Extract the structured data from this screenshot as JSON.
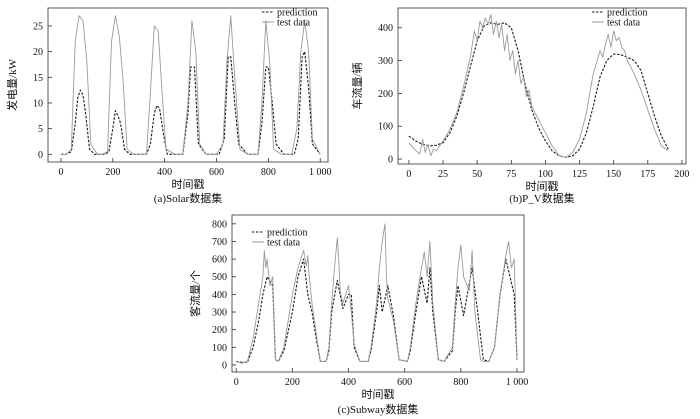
{
  "chart_data": [
    {
      "type": "line",
      "caption": "(a)Solar数据集",
      "xlabel": "时间戳",
      "ylabel": "发电量/kW",
      "xlim": [
        -50,
        1030
      ],
      "ylim": [
        -1.5,
        28.5
      ],
      "xticks": [
        0,
        200,
        400,
        600,
        800,
        1000
      ],
      "xticklabels": [
        "0",
        "200",
        "400",
        "600",
        "800",
        "1 000"
      ],
      "yticks": [
        0,
        5,
        10,
        15,
        20,
        25
      ],
      "yticklabels": [
        "0",
        "5",
        "10",
        "15",
        "20",
        "25"
      ],
      "legend": {
        "position": "top-right",
        "entries": [
          "prediction",
          "test data"
        ]
      },
      "series": [
        {
          "name": "prediction",
          "style": "dashed",
          "color": "#1a1a1a",
          "x": [
            0,
            20,
            40,
            55,
            65,
            75,
            85,
            95,
            110,
            130,
            150,
            170,
            185,
            200,
            210,
            220,
            230,
            245,
            265,
            290,
            310,
            330,
            345,
            360,
            370,
            380,
            395,
            410,
            430,
            455,
            470,
            490,
            500,
            515,
            530,
            560,
            590,
            610,
            630,
            645,
            655,
            670,
            685,
            720,
            740,
            760,
            775,
            790,
            800,
            815,
            830,
            860,
            880,
            900,
            915,
            930,
            940,
            955,
            970,
            1000
          ],
          "y": [
            0,
            0,
            0.5,
            6,
            11,
            12.5,
            11.5,
            8,
            1,
            0,
            0,
            0,
            0.5,
            5,
            8.5,
            7.5,
            6,
            1,
            0,
            0,
            0,
            0,
            2,
            8,
            9.5,
            9,
            4,
            0,
            0,
            0,
            0,
            8,
            17,
            17,
            2,
            0,
            0,
            0,
            3,
            19,
            19,
            10,
            2,
            0,
            0,
            0,
            6,
            17,
            17,
            10,
            2,
            0,
            0,
            0,
            3,
            19,
            20,
            13,
            2,
            0
          ]
        },
        {
          "name": "test data",
          "style": "solid",
          "color": "#9a9a9a",
          "x": [
            0,
            20,
            40,
            55,
            70,
            85,
            100,
            115,
            140,
            160,
            180,
            195,
            210,
            225,
            240,
            255,
            280,
            300,
            330,
            345,
            360,
            375,
            390,
            405,
            440,
            470,
            490,
            505,
            520,
            535,
            560,
            600,
            625,
            640,
            655,
            670,
            690,
            720,
            760,
            775,
            790,
            805,
            820,
            850,
            890,
            910,
            925,
            940,
            955,
            970,
            1000
          ],
          "y": [
            0,
            0,
            1,
            22,
            27,
            26,
            18,
            2,
            0,
            0,
            0.5,
            22,
            27,
            23,
            14,
            1,
            0,
            0,
            0,
            12,
            25,
            24,
            12,
            1,
            0,
            0,
            10,
            26,
            20,
            2,
            0,
            0,
            2,
            18,
            27,
            15,
            1,
            0,
            0,
            10,
            26,
            18,
            1,
            0,
            0,
            5,
            20,
            26,
            20,
            3,
            0
          ]
        }
      ]
    },
    {
      "type": "line",
      "caption": "(b)P_V数据集",
      "xlabel": "时间戳",
      "ylabel": "车流量/辆",
      "xlim": [
        -8,
        203
      ],
      "ylim": [
        -15,
        460
      ],
      "xticks": [
        0,
        25,
        50,
        75,
        100,
        125,
        150,
        175,
        200
      ],
      "xticklabels": [
        "0",
        "25",
        "50",
        "75",
        "100",
        "125",
        "150",
        "175",
        "200"
      ],
      "yticks": [
        0,
        100,
        200,
        300,
        400
      ],
      "yticklabels": [
        "0",
        "100",
        "200",
        "300",
        "400"
      ],
      "legend": {
        "position": "top-right",
        "entries": [
          "prediction",
          "test data"
        ]
      },
      "series": [
        {
          "name": "prediction",
          "style": "dashed",
          "color": "#1a1a1a",
          "x": [
            0,
            5,
            10,
            15,
            20,
            25,
            30,
            35,
            40,
            45,
            50,
            55,
            60,
            65,
            70,
            75,
            80,
            85,
            90,
            95,
            100,
            105,
            110,
            115,
            120,
            125,
            130,
            135,
            140,
            145,
            150,
            155,
            160,
            165,
            170,
            175,
            180,
            185,
            190
          ],
          "y": [
            70,
            55,
            45,
            40,
            42,
            50,
            80,
            130,
            200,
            280,
            360,
            405,
            415,
            410,
            415,
            400,
            330,
            230,
            150,
            95,
            55,
            25,
            10,
            5,
            10,
            30,
            80,
            160,
            250,
            300,
            320,
            318,
            310,
            300,
            270,
            200,
            130,
            70,
            30
          ]
        },
        {
          "name": "test data",
          "style": "solid",
          "color": "#9a9a9a",
          "x": [
            0,
            4,
            8,
            10,
            12,
            14,
            16,
            18,
            20,
            25,
            30,
            35,
            40,
            45,
            48,
            50,
            52,
            54,
            56,
            58,
            60,
            62,
            64,
            66,
            68,
            70,
            72,
            74,
            76,
            78,
            80,
            82,
            84,
            86,
            88,
            90,
            95,
            100,
            105,
            110,
            115,
            120,
            125,
            130,
            135,
            140,
            142,
            144,
            146,
            148,
            150,
            152,
            154,
            156,
            158,
            160,
            165,
            170,
            175,
            180,
            185,
            190
          ],
          "y": [
            50,
            30,
            15,
            60,
            20,
            45,
            10,
            30,
            25,
            55,
            90,
            140,
            220,
            310,
            390,
            360,
            420,
            400,
            430,
            410,
            440,
            380,
            420,
            370,
            410,
            330,
            380,
            300,
            330,
            260,
            300,
            230,
            250,
            190,
            210,
            160,
            120,
            80,
            40,
            10,
            5,
            20,
            60,
            140,
            260,
            330,
            310,
            350,
            380,
            340,
            390,
            360,
            370,
            340,
            330,
            300,
            260,
            210,
            150,
            90,
            40,
            25
          ]
        }
      ]
    },
    {
      "type": "line",
      "caption": "(c)Subway数据集",
      "xlabel": "时间戳",
      "ylabel": "客流量/个",
      "xlim": [
        -15,
        1025
      ],
      "ylim": [
        -40,
        850
      ],
      "xticks": [
        0,
        200,
        400,
        600,
        800,
        1000
      ],
      "xticklabels": [
        "0",
        "200",
        "400",
        "600",
        "800",
        "1 000"
      ],
      "yticks": [
        0,
        100,
        200,
        300,
        400,
        500,
        600,
        700,
        800
      ],
      "yticklabels": [
        "0",
        "100",
        "200",
        "300",
        "400",
        "500",
        "600",
        "700",
        "800"
      ],
      "legend": {
        "position": "top-left",
        "entries": [
          "prediction",
          "test data"
        ]
      },
      "series": [
        {
          "name": "prediction",
          "style": "dashed",
          "color": "#1a1a1a",
          "x": [
            0,
            20,
            40,
            60,
            80,
            95,
            110,
            130,
            140,
            150,
            170,
            200,
            220,
            240,
            255,
            270,
            285,
            300,
            320,
            330,
            340,
            360,
            380,
            400,
            410,
            420,
            440,
            470,
            480,
            500,
            510,
            520,
            540,
            560,
            580,
            610,
            620,
            640,
            660,
            680,
            690,
            700,
            720,
            740,
            770,
            780,
            790,
            810,
            840,
            860,
            880,
            900,
            920,
            940,
            960,
            990,
            1000
          ],
          "y": [
            20,
            15,
            15,
            100,
            250,
            400,
            500,
            450,
            30,
            20,
            80,
            300,
            500,
            600,
            400,
            300,
            150,
            20,
            20,
            80,
            300,
            480,
            320,
            400,
            400,
            100,
            20,
            20,
            80,
            300,
            450,
            300,
            450,
            280,
            30,
            20,
            80,
            300,
            500,
            350,
            550,
            300,
            30,
            20,
            80,
            300,
            450,
            280,
            550,
            300,
            30,
            20,
            100,
            400,
            600,
            400,
            30
          ]
        },
        {
          "name": "test data",
          "style": "solid",
          "color": "#9a9a9a",
          "x": [
            0,
            20,
            40,
            60,
            80,
            95,
            100,
            105,
            110,
            120,
            130,
            140,
            150,
            170,
            200,
            220,
            240,
            250,
            255,
            260,
            270,
            285,
            300,
            320,
            330,
            340,
            350,
            360,
            365,
            370,
            380,
            400,
            410,
            420,
            440,
            470,
            480,
            500,
            510,
            520,
            530,
            535,
            540,
            560,
            580,
            610,
            620,
            640,
            660,
            670,
            680,
            690,
            700,
            720,
            740,
            770,
            780,
            790,
            800,
            810,
            830,
            840,
            850,
            870,
            880,
            900,
            920,
            940,
            960,
            970,
            980,
            990,
            1000
          ],
          "y": [
            20,
            10,
            20,
            150,
            350,
            500,
            650,
            550,
            600,
            450,
            500,
            30,
            20,
            100,
            400,
            550,
            650,
            560,
            620,
            500,
            350,
            180,
            20,
            20,
            100,
            350,
            550,
            720,
            600,
            420,
            350,
            450,
            300,
            120,
            20,
            20,
            100,
            350,
            550,
            700,
            800,
            500,
            380,
            250,
            30,
            20,
            100,
            350,
            550,
            640,
            500,
            700,
            350,
            30,
            20,
            100,
            350,
            550,
            680,
            500,
            420,
            650,
            300,
            30,
            20,
            20,
            100,
            400,
            620,
            700,
            550,
            600,
            30
          ]
        }
      ]
    }
  ]
}
